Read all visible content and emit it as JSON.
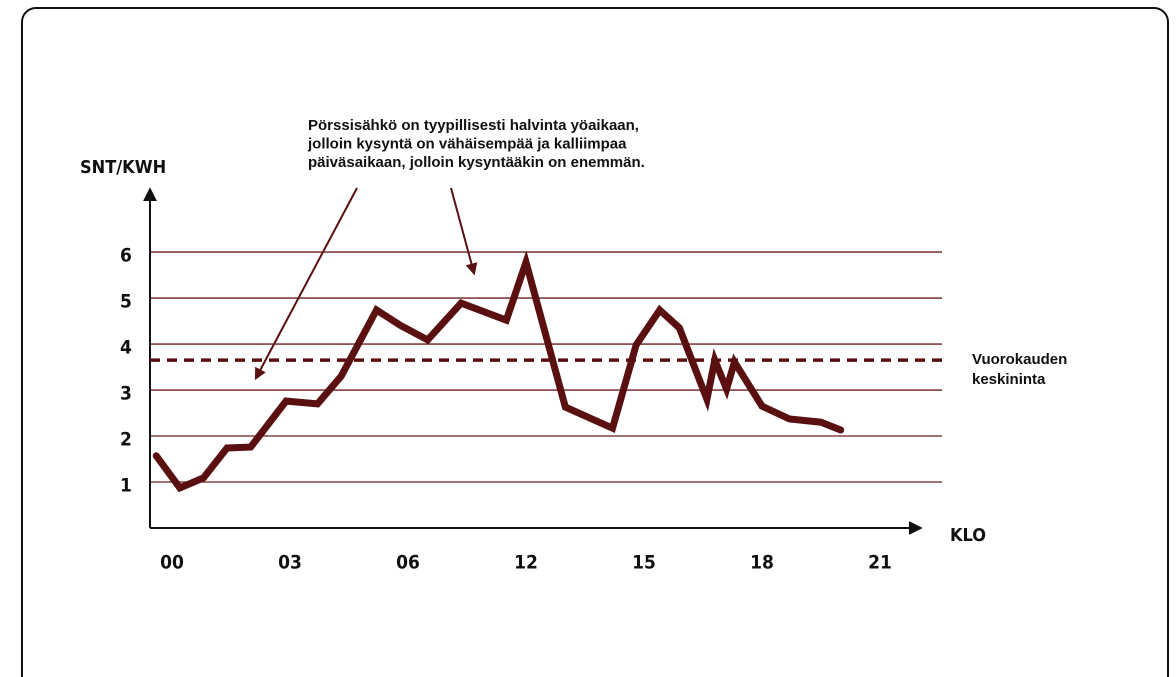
{
  "chart_data": {
    "type": "line",
    "ylabel": "SNT/KWH",
    "xlabel": "KLO",
    "annotation": [
      "Pörssisähkö on tyypillisesti halvinta yöaikaan,",
      "jolloin kysyntä on vähäisempää ja kalliimpaa",
      "päiväsaikaan, jolloin kysyntääkin on enemmän."
    ],
    "x": [
      -0.4,
      0.2,
      0.8,
      1.4,
      2,
      2.9,
      3.7,
      4.3,
      5.2,
      5.8,
      7,
      8.7,
      11,
      12,
      13,
      14.2,
      14.8,
      15.4,
      15.9,
      16.6,
      16.8,
      17.1,
      17.3,
      18,
      18.7,
      19.5,
      20
    ],
    "series": [
      {
        "color": "#5a1010",
        "values": [
          1.57,
          0.87,
          1.09,
          1.74,
          1.76,
          2.76,
          2.7,
          3.3,
          4.74,
          4.41,
          4.09,
          4.89,
          4.52,
          5.78,
          2.63,
          2.17,
          3.98,
          4.74,
          4.35,
          2.8,
          3.65,
          3.02,
          3.61,
          2.65,
          2.37,
          2.3,
          2.13
        ]
      }
    ],
    "average": {
      "value": 3.65,
      "label": [
        "Vuorokauden",
        "keskininta"
      ],
      "color": "#5a1010"
    },
    "xlim": [
      -0.6,
      22
    ],
    "xticks": [
      {
        "value": 0,
        "label": "00"
      },
      {
        "value": 3,
        "label": "03"
      },
      {
        "value": 6,
        "label": "06"
      },
      12,
      15,
      18,
      21
    ],
    "ylim": [
      0,
      7.35
    ],
    "yticks": [
      1,
      2,
      3,
      4,
      5,
      6
    ],
    "grid": true,
    "grid_color": "#6b1f1f"
  }
}
